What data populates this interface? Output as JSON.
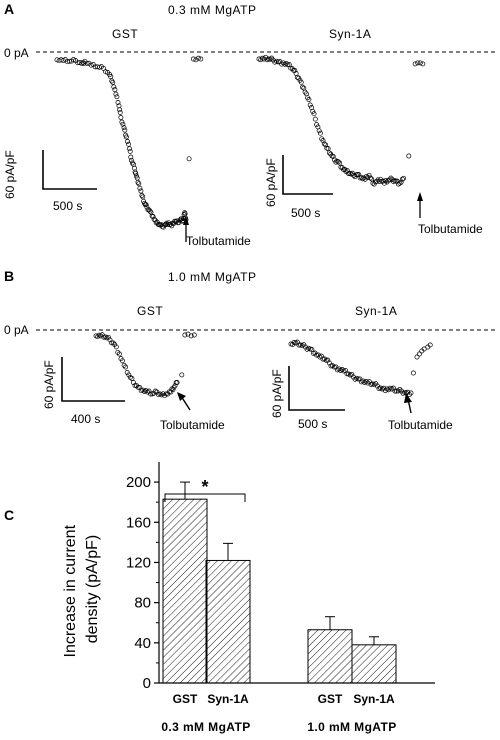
{
  "panels": {
    "A": {
      "letter": "A",
      "condition": "0.3 mM MgATP",
      "zero_label": "0 pA",
      "drug_label": "Tolbutamide",
      "traces": [
        {
          "title": "GST",
          "scale_y": "60 pA/pF",
          "scale_x": "500 s",
          "points": [
            [
              0,
              1
            ],
            [
              10,
              2
            ],
            [
              20,
              3
            ],
            [
              30,
              2
            ],
            [
              40,
              6
            ],
            [
              45,
              3
            ],
            [
              55,
              8
            ],
            [
              65,
              10
            ],
            [
              75,
              12
            ],
            [
              85,
              20
            ],
            [
              90,
              30
            ],
            [
              95,
              45
            ],
            [
              100,
              60
            ],
            [
              103,
              75
            ],
            [
              108,
              88
            ],
            [
              112,
              100
            ],
            [
              117,
              115
            ],
            [
              120,
              130
            ],
            [
              125,
              140
            ],
            [
              128,
              150
            ],
            [
              132,
              160
            ],
            [
              137,
              175
            ],
            [
              141,
              185
            ],
            [
              145,
              190
            ],
            [
              150,
              195
            ],
            [
              155,
              202
            ],
            [
              160,
              210
            ],
            [
              165,
              212
            ],
            [
              170,
              215
            ],
            [
              175,
              212
            ],
            [
              180,
              210
            ],
            [
              185,
              214
            ],
            [
              190,
              208
            ],
            [
              195,
              210
            ],
            [
              200,
              205
            ],
            [
              203,
              207
            ],
            [
              206,
              197
            ],
            [
              208,
              206
            ]
          ],
          "recovery": [
            [
              220,
              0
            ],
            [
              224,
              1
            ],
            [
              228,
              -1
            ],
            [
              232,
              0
            ]
          ],
          "outlier": [
            [
              213,
              128
            ]
          ],
          "arrow_x": 208
        },
        {
          "title": "Syn-1A",
          "scale_y": "60 pA/pF",
          "scale_x": "500 s",
          "points": [
            [
              0,
              0
            ],
            [
              8,
              0
            ],
            [
              15,
              0
            ],
            [
              22,
              1
            ],
            [
              30,
              3
            ],
            [
              38,
              4
            ],
            [
              45,
              6
            ],
            [
              52,
              10
            ],
            [
              58,
              15
            ],
            [
              64,
              22
            ],
            [
              70,
              30
            ],
            [
              76,
              40
            ],
            [
              82,
              50
            ],
            [
              88,
              62
            ],
            [
              94,
              74
            ],
            [
              100,
              84
            ],
            [
              106,
              92
            ],
            [
              112,
              98
            ],
            [
              118,
              104
            ],
            [
              124,
              106
            ],
            [
              130,
              112
            ],
            [
              136,
              116
            ],
            [
              142,
              118
            ],
            [
              148,
              120
            ],
            [
              154,
              119
            ],
            [
              160,
              122
            ],
            [
              166,
              124
            ],
            [
              172,
              120
            ],
            [
              178,
              128
            ],
            [
              184,
              126
            ],
            [
              190,
              124
            ],
            [
              196,
              128
            ],
            [
              202,
              125
            ],
            [
              208,
              124
            ],
            [
              214,
              126
            ],
            [
              220,
              128
            ],
            [
              226,
              123
            ]
          ],
          "recovery": [
            [
              244,
              5
            ],
            [
              248,
              4
            ],
            [
              252,
              4
            ],
            [
              256,
              5
            ]
          ],
          "outlier": [
            [
              234,
              100
            ]
          ],
          "arrow_x": 226
        }
      ]
    },
    "B": {
      "letter": "B",
      "condition": "1.0 mM MgATP",
      "zero_label": "0 pA",
      "drug_label": "Tolbutamide",
      "traces": [
        {
          "title": "GST",
          "scale_y": "60 pA/pF",
          "scale_x": "400 s",
          "points": [
            [
              0,
              1
            ],
            [
              6,
              1
            ],
            [
              12,
              2
            ],
            [
              18,
              5
            ],
            [
              24,
              10
            ],
            [
              30,
              20
            ],
            [
              36,
              32
            ],
            [
              42,
              42
            ],
            [
              48,
              50
            ],
            [
              54,
              55
            ],
            [
              60,
              58
            ],
            [
              66,
              60
            ],
            [
              72,
              62
            ],
            [
              78,
              60
            ],
            [
              84,
              63
            ],
            [
              90,
              62
            ],
            [
              96,
              60
            ],
            [
              100,
              55
            ],
            [
              104,
              50
            ]
          ],
          "recovery": [
            [
              114,
              0
            ],
            [
              118,
              -1
            ],
            [
              122,
              1
            ],
            [
              126,
              0
            ]
          ],
          "outlier": [
            [
              110,
              42
            ]
          ],
          "arrow_x": 102
        },
        {
          "title": "Syn-1A",
          "scale_y": "60 pA/pF",
          "scale_x": "500 s",
          "points": [
            [
              0,
              5
            ],
            [
              8,
              4
            ],
            [
              16,
              6
            ],
            [
              24,
              8
            ],
            [
              32,
              10
            ],
            [
              40,
              14
            ],
            [
              48,
              18
            ],
            [
              56,
              20
            ],
            [
              64,
              24
            ],
            [
              72,
              28
            ],
            [
              80,
              30
            ],
            [
              88,
              32
            ],
            [
              96,
              35
            ],
            [
              104,
              38
            ],
            [
              112,
              40
            ],
            [
              120,
              42
            ],
            [
              128,
              44
            ],
            [
              136,
              45
            ],
            [
              144,
              47
            ],
            [
              152,
              50
            ],
            [
              160,
              50
            ],
            [
              168,
              50
            ],
            [
              176,
              52
            ],
            [
              184,
              52
            ],
            [
              192,
              54
            ],
            [
              200,
              54
            ]
          ],
          "recovery": [
            [
              210,
              18
            ],
            [
              214,
              15
            ],
            [
              218,
              12
            ],
            [
              222,
              10
            ],
            [
              228,
              8
            ],
            [
              232,
              6
            ]
          ],
          "outlier": [
            [
              204,
              34
            ]
          ],
          "arrow_x": 200
        }
      ]
    }
  },
  "chart_data": {
    "type": "bar",
    "panel_letter": "C",
    "ylabel": "Increase in current density (pA/pF)",
    "ylabel_lines": [
      "Increase in current",
      "density (pA/pF)"
    ],
    "ylim": [
      0,
      220
    ],
    "yticks": [
      "0",
      "40",
      "80",
      "120",
      "160",
      "200"
    ],
    "yticks_values": [
      0,
      40,
      80,
      120,
      160,
      200
    ],
    "categories": [
      "GST",
      "Syn-1A",
      "GST",
      "Syn-1A"
    ],
    "groups": [
      "0.3 mM MgATP",
      "1.0 mM MgATP"
    ],
    "values": [
      183,
      122,
      53,
      38
    ],
    "errors": [
      17,
      17,
      13,
      8
    ],
    "significance": "*"
  }
}
